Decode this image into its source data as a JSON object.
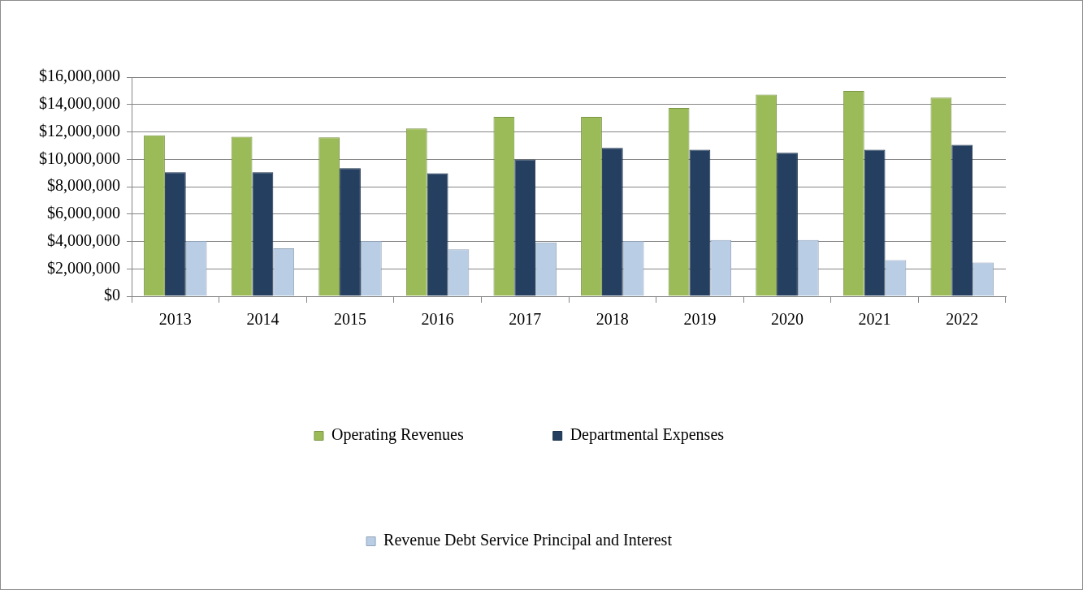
{
  "chart_data": {
    "type": "bar",
    "categories": [
      "2013",
      "2014",
      "2015",
      "2016",
      "2017",
      "2018",
      "2019",
      "2020",
      "2021",
      "2022"
    ],
    "series": [
      {
        "name": "Operating Revenues",
        "color": "#9bbb59",
        "values": [
          11750000,
          11650000,
          11600000,
          12250000,
          13100000,
          13100000,
          13750000,
          14720000,
          15000000,
          14500000
        ]
      },
      {
        "name": "Departmental Expenses",
        "color": "#243f60",
        "values": [
          9050000,
          9050000,
          9350000,
          8980000,
          9980000,
          10830000,
          10690000,
          10480000,
          10690000,
          11050000
        ]
      },
      {
        "name": "Revenue Debt Service Principal and Interest",
        "color": "#b9cde5",
        "values": [
          4030000,
          3490000,
          4030000,
          3420000,
          3920000,
          4030000,
          4100000,
          4100000,
          2640000,
          2460000
        ]
      }
    ],
    "ylim": [
      0,
      16000000
    ],
    "yticks": [
      {
        "value": 0,
        "label": "$0"
      },
      {
        "value": 2000000,
        "label": "$2,000,000"
      },
      {
        "value": 4000000,
        "label": "$4,000,000"
      },
      {
        "value": 6000000,
        "label": "$6,000,000"
      },
      {
        "value": 8000000,
        "label": "$8,000,000"
      },
      {
        "value": 10000000,
        "label": "$10,000,000"
      },
      {
        "value": 12000000,
        "label": "$12,000,000"
      },
      {
        "value": 14000000,
        "label": "$14,000,000"
      },
      {
        "value": 16000000,
        "label": "$16,000,000"
      }
    ],
    "grid": "y",
    "legend": "bottom"
  }
}
